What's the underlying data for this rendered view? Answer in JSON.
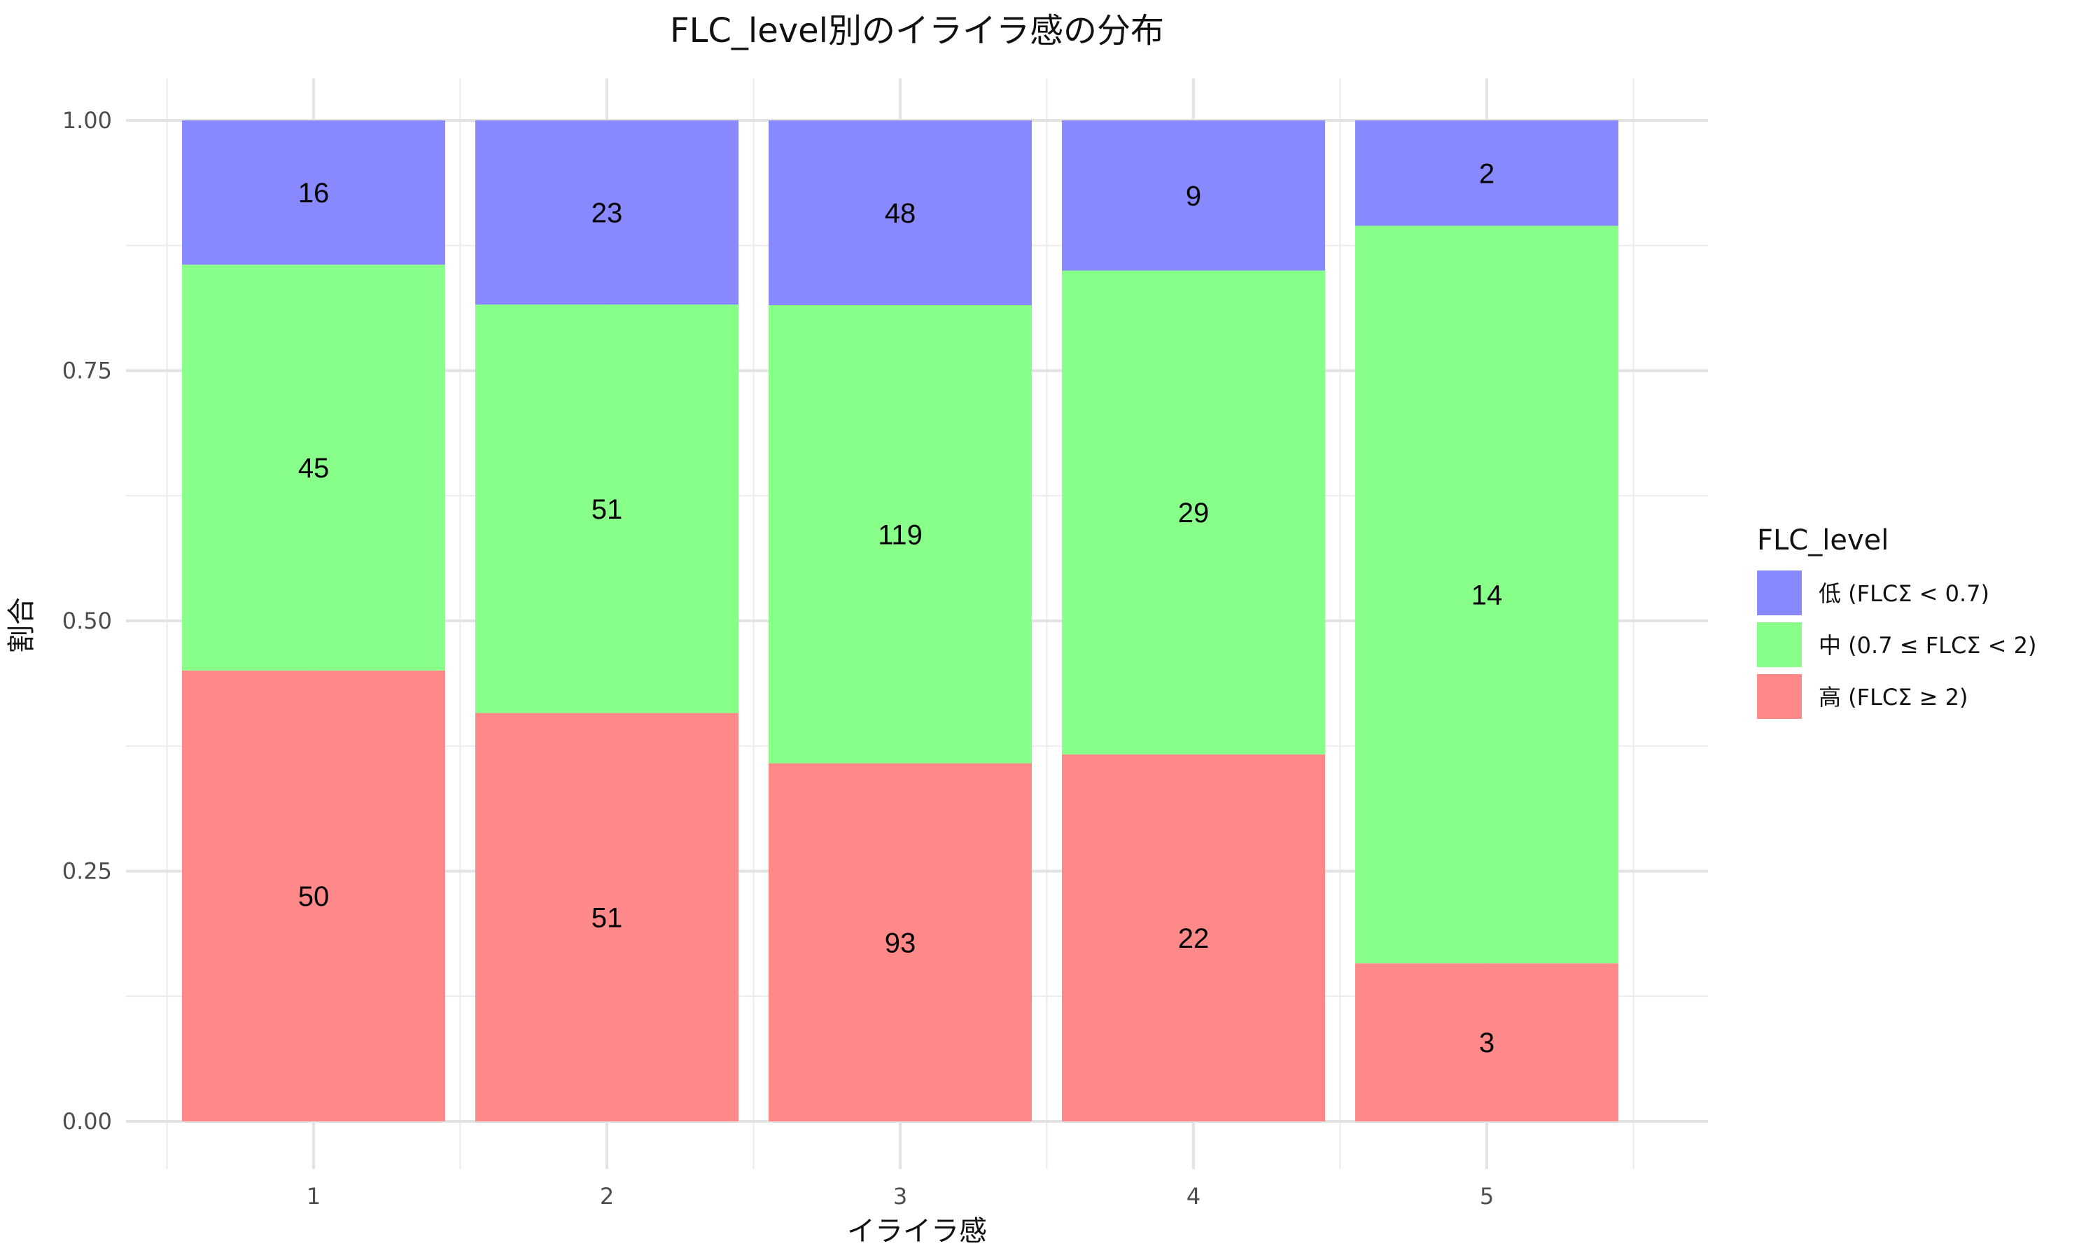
{
  "chart_data": {
    "type": "bar",
    "stacked": true,
    "normalized": true,
    "title": "FLC_level別のイライラ感の分布",
    "xlabel": "イライラ感",
    "ylabel": "割合",
    "categories": [
      "1",
      "2",
      "3",
      "4",
      "5"
    ],
    "ylim": [
      0,
      1
    ],
    "yticks": [
      "0.00",
      "0.25",
      "0.50",
      "0.75",
      "1.00"
    ],
    "grid": true,
    "legend": {
      "title": "FLC_level",
      "position": "right"
    },
    "series": [
      {
        "name": "高 (FLCΣ ≥ 2)",
        "color": "#FF8888",
        "values": [
          50,
          51,
          93,
          22,
          3
        ]
      },
      {
        "name": "中 (0.7 ≤ FLCΣ < 2)",
        "color": "#88FF88",
        "values": [
          45,
          51,
          119,
          29,
          14
        ]
      },
      {
        "name": "低 (FLCΣ < 0.7)",
        "color": "#8888FF",
        "values": [
          16,
          23,
          48,
          9,
          2
        ]
      }
    ],
    "legend_order": [
      2,
      1,
      0
    ]
  }
}
